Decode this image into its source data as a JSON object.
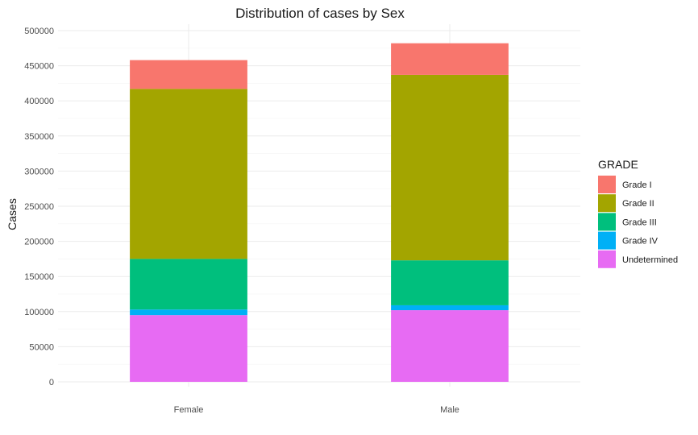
{
  "chart_data": {
    "type": "bar",
    "stacked": true,
    "title": "Distribution of cases by Sex",
    "xlabel": "",
    "ylabel": "Cases",
    "categories": [
      "Female",
      "Male"
    ],
    "ylim": [
      0,
      500000
    ],
    "yticks": [
      0,
      50000,
      100000,
      150000,
      200000,
      250000,
      300000,
      350000,
      400000,
      450000,
      500000
    ],
    "grid": true,
    "legend": {
      "title": "GRADE",
      "position": "right"
    },
    "series": [
      {
        "name": "Undetermined",
        "color": "#E76BF3",
        "values": [
          95000,
          102000
        ]
      },
      {
        "name": "Grade IV",
        "color": "#00B0F6",
        "values": [
          8000,
          7000
        ]
      },
      {
        "name": "Grade III",
        "color": "#00BF7D",
        "values": [
          72000,
          64000
        ]
      },
      {
        "name": "Grade II",
        "color": "#A3A500",
        "values": [
          242000,
          264000
        ]
      },
      {
        "name": "Grade I",
        "color": "#F8766D",
        "values": [
          41000,
          45000
        ]
      }
    ],
    "legend_order": [
      "Grade I",
      "Grade II",
      "Grade III",
      "Grade IV",
      "Undetermined"
    ]
  }
}
